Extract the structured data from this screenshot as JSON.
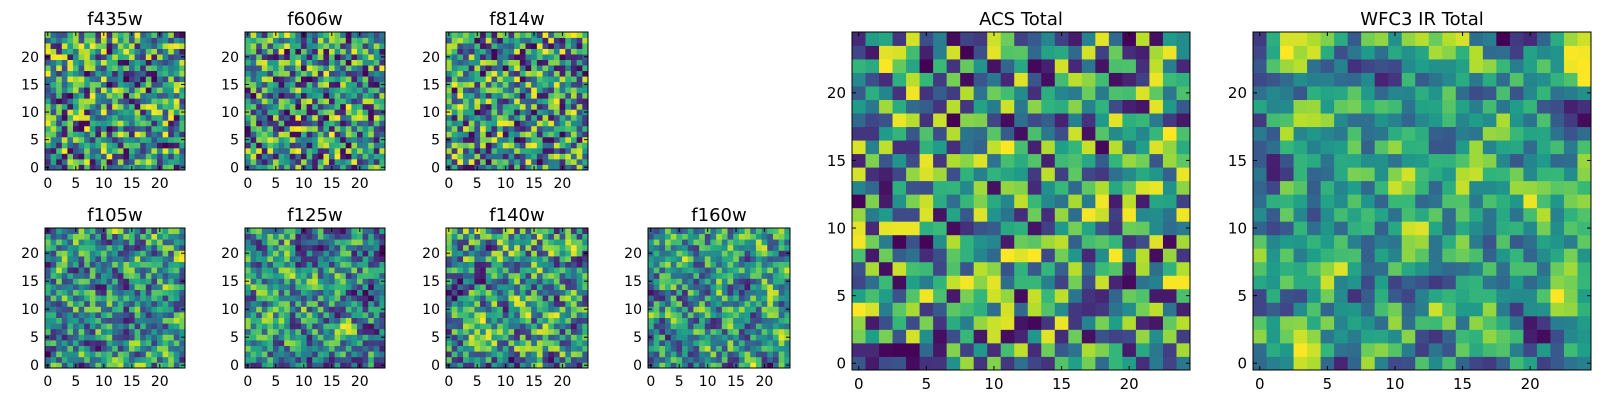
{
  "chart_data": [
    {
      "type": "heatmap",
      "title": "f435w",
      "xlim": [
        0,
        24
      ],
      "ylim": [
        0,
        24
      ],
      "xticks": [
        0,
        5,
        10,
        15,
        20
      ],
      "yticks": [
        0,
        5,
        10,
        15,
        20
      ],
      "colormap": "viridis",
      "seed": 11,
      "smooth": 0
    },
    {
      "type": "heatmap",
      "title": "f606w",
      "xlim": [
        0,
        24
      ],
      "ylim": [
        0,
        24
      ],
      "xticks": [
        0,
        5,
        10,
        15,
        20
      ],
      "yticks": [
        0,
        5,
        10,
        15,
        20
      ],
      "colormap": "viridis",
      "seed": 23,
      "smooth": 0
    },
    {
      "type": "heatmap",
      "title": "f814w",
      "xlim": [
        0,
        24
      ],
      "ylim": [
        0,
        24
      ],
      "xticks": [
        0,
        5,
        10,
        15,
        20
      ],
      "yticks": [
        0,
        5,
        10,
        15,
        20
      ],
      "colormap": "viridis",
      "seed": 37,
      "smooth": 0
    },
    {
      "type": "heatmap",
      "title": "f105w",
      "xlim": [
        0,
        24
      ],
      "ylim": [
        0,
        24
      ],
      "xticks": [
        0,
        5,
        10,
        15,
        20
      ],
      "yticks": [
        0,
        5,
        10,
        15,
        20
      ],
      "colormap": "viridis",
      "seed": 41,
      "smooth": 1
    },
    {
      "type": "heatmap",
      "title": "f125w",
      "xlim": [
        0,
        24
      ],
      "ylim": [
        0,
        24
      ],
      "xticks": [
        0,
        5,
        10,
        15,
        20
      ],
      "yticks": [
        0,
        5,
        10,
        15,
        20
      ],
      "colormap": "viridis",
      "seed": 53,
      "smooth": 1
    },
    {
      "type": "heatmap",
      "title": "f140w",
      "xlim": [
        0,
        24
      ],
      "ylim": [
        0,
        24
      ],
      "xticks": [
        0,
        5,
        10,
        15,
        20
      ],
      "yticks": [
        0,
        5,
        10,
        15,
        20
      ],
      "colormap": "viridis",
      "seed": 67,
      "smooth": 1
    },
    {
      "type": "heatmap",
      "title": "f160w",
      "xlim": [
        0,
        24
      ],
      "ylim": [
        0,
        24
      ],
      "xticks": [
        0,
        5,
        10,
        15,
        20
      ],
      "yticks": [
        0,
        5,
        10,
        15,
        20
      ],
      "colormap": "viridis",
      "seed": 79,
      "smooth": 1
    },
    {
      "type": "heatmap",
      "title": "ACS Total",
      "xlim": [
        0,
        24
      ],
      "ylim": [
        0,
        24
      ],
      "xticks": [
        0,
        5,
        10,
        15,
        20
      ],
      "yticks": [
        0,
        5,
        10,
        15,
        20
      ],
      "colormap": "viridis",
      "seed": 97,
      "smooth": 0
    },
    {
      "type": "heatmap",
      "title": "WFC3 IR Total",
      "xlim": [
        0,
        24
      ],
      "ylim": [
        0,
        24
      ],
      "xticks": [
        0,
        5,
        10,
        15,
        20
      ],
      "yticks": [
        0,
        5,
        10,
        15,
        20
      ],
      "colormap": "viridis",
      "seed": 113,
      "smooth": 2
    }
  ]
}
